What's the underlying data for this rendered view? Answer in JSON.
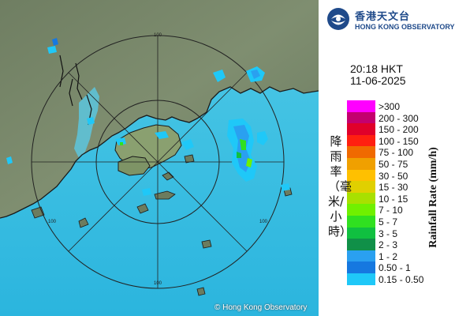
{
  "map": {
    "copyright": "© Hong Kong Observatory",
    "range_ring_labels": [
      "100",
      "100",
      "100",
      "100"
    ]
  },
  "header": {
    "logo_zh": "香港天文台",
    "logo_en": "HONG KONG OBSERVATORY",
    "time": "20:18 HKT",
    "date": "11-06-2025"
  },
  "legend": {
    "label_zh": "降雨率（毫米/小時）",
    "label_en": "Rainfall Rate (mm/h)",
    "items": [
      {
        "label": ">300",
        "color": "#ff00ff"
      },
      {
        "label": "200 - 300",
        "color": "#c4006e"
      },
      {
        "label": "150 - 200",
        "color": "#e0002a"
      },
      {
        "label": "100 - 150",
        "color": "#ff1f10"
      },
      {
        "label": "75 - 100",
        "color": "#f06a00"
      },
      {
        "label": "50 - 75",
        "color": "#f0a000"
      },
      {
        "label": "30 - 50",
        "color": "#ffc000"
      },
      {
        "label": "15 - 30",
        "color": "#e0d000"
      },
      {
        "label": "10 - 15",
        "color": "#a8e000"
      },
      {
        "label": "7 - 10",
        "color": "#70f000"
      },
      {
        "label": "5 - 7",
        "color": "#30e020"
      },
      {
        "label": "3 - 5",
        "color": "#10c040"
      },
      {
        "label": "2 - 3",
        "color": "#109048"
      },
      {
        "label": "1 - 2",
        "color": "#2aa0f0"
      },
      {
        "label": "0.50 - 1",
        "color": "#1678e0"
      },
      {
        "label": "0.15 - 0.50",
        "color": "#1fc8f8"
      }
    ]
  }
}
